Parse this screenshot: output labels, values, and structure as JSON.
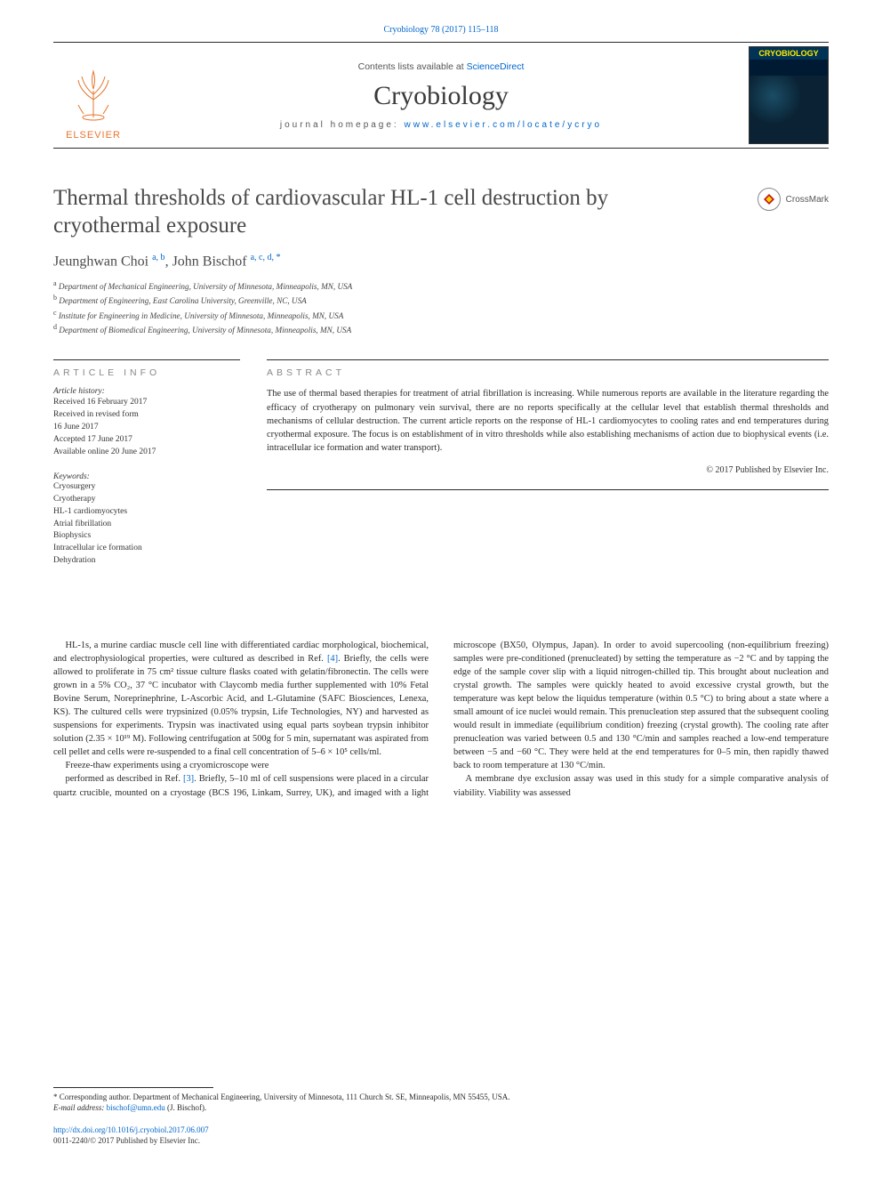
{
  "top_citation_prefix": "Cryobiology 78 (2017) 115",
  "top_citation_dash": "–",
  "top_citation_suffix": "118",
  "masthead": {
    "contents_prefix": "Contents lists available at ",
    "contents_link": "ScienceDirect",
    "journal": "Cryobiology",
    "homepage_prefix": "journal homepage: ",
    "homepage_url": "www.elsevier.com/locate/ycryo",
    "logo_text": "ELSEVIER",
    "cover_title": "CRYOBIOLOGY",
    "logo_color": "#e8762f",
    "cover_bg": "#001a33",
    "cover_title_color": "#ffeb00"
  },
  "crossmark_label": "CrossMark",
  "title": "Thermal thresholds of cardiovascular HL-1 cell destruction by cryothermal exposure",
  "authors": {
    "a1_name": "Jeunghwan Choi ",
    "a1_sup": "a, b",
    "sep": ", ",
    "a2_name": "John Bischof ",
    "a2_sup": "a, c, d, ",
    "a2_star": "*"
  },
  "affiliations": {
    "a": "Department of Mechanical Engineering, University of Minnesota, Minneapolis, MN, USA",
    "b": "Department of Engineering, East Carolina University, Greenville, NC, USA",
    "c": "Institute for Engineering in Medicine, University of Minnesota, Minneapolis, MN, USA",
    "d": "Department of Biomedical Engineering, University of Minnesota, Minneapolis, MN, USA"
  },
  "article_info": {
    "heading": "article info",
    "history_label": "Article history:",
    "history": "Received 16 February 2017\nReceived in revised form\n16 June 2017\nAccepted 17 June 2017\nAvailable online 20 June 2017",
    "keywords_label": "Keywords:",
    "keywords": "Cryosurgery\nCryotherapy\nHL-1 cardiomyocytes\nAtrial fibrillation\nBiophysics\nIntracellular ice formation\nDehydration"
  },
  "abstract": {
    "heading": "abstract",
    "body": "The use of thermal based therapies for treatment of atrial fibrillation is increasing. While numerous reports are available in the literature regarding the efficacy of cryotherapy on pulmonary vein survival, there are no reports specifically at the cellular level that establish thermal thresholds and mechanisms of cellular destruction. The current article reports on the response of HL-1 cardiomyocytes to cooling rates and end temperatures during cryothermal exposure. The focus is on establishment of in vitro thresholds while also establishing mechanisms of action due to biophysical events (i.e. intracellular ice formation and water transport).",
    "copyright": "© 2017 Published by Elsevier Inc."
  },
  "body": {
    "p1": "HL-1s, a murine cardiac muscle cell line with differentiated cardiac morphological, biochemical, and electrophysiological properties, were cultured as described in Ref. [4]. Briefly, the cells were allowed to proliferate in 75 cm² tissue culture flasks coated with gelatin/fibronectin. The cells were grown in a 5% CO₂, 37 °C incubator with Claycomb media further supplemented with 10% Fetal Bovine Serum, Noreprinephrine, L-Ascorbic Acid, and L-Glutamine (SAFC Biosciences, Lenexa, KS). The cultured cells were trypsinized (0.05% trypsin, Life Technologies, NY) and harvested as suspensions for experiments. Trypsin was inactivated using equal parts soybean trypsin inhibitor solution (2.35 × 10¹⁹ M). Following centrifugation at 500g for 5 min, supernatant was aspirated from cell pellet and cells were re-suspended to a final cell concentration of 5–6 × 10⁵ cells/ml.",
    "p2": "Freeze-thaw experiments using a cryomicroscope were",
    "p3": "performed as described in Ref. [3]. Briefly, 5–10 ml of cell suspensions were placed in a circular quartz crucible, mounted on a cryostage (BCS 196, Linkam, Surrey, UK), and imaged with a light microscope (BX50, Olympus, Japan). In order to avoid supercooling (non-equilibrium freezing) samples were pre-conditioned (prenucleated) by setting the temperature as −2 °C and by tapping the edge of the sample cover slip with a liquid nitrogen-chilled tip. This brought about nucleation and crystal growth. The samples were quickly heated to avoid excessive crystal growth, but the temperature was kept below the liquidus temperature (within 0.5 °C) to bring about a state where a small amount of ice nuclei would remain. This prenucleation step assured that the subsequent cooling would result in immediate (equilibrium condition) freezing (crystal growth). The cooling rate after prenucleation was varied between 0.5 and 130 °C/min and samples reached a low-end temperature between −5 and −60 °C. They were held at the end temperatures for 0–5 min, then rapidly thawed back to room temperature at 130 °C/min.",
    "p4": "A membrane dye exclusion assay was used in this study for a simple comparative analysis of viability. Viability was assessed"
  },
  "footnote": {
    "corr": "* Corresponding author. Department of Mechanical Engineering, University of Minnesota, 111 Church St. SE, Minneapolis, MN 55455, USA.",
    "email_label": "E-mail address: ",
    "email": "bischof@umn.edu",
    "email_suffix": " (J. Bischof).",
    "doi": "http://dx.doi.org/10.1016/j.cryobiol.2017.06.007",
    "issn_copy": "0011-2240/© 2017 Published by Elsevier Inc."
  },
  "colors": {
    "link": "#0066cc",
    "text": "#2a2a2a",
    "muted": "#555555",
    "rule": "#2a2a2a"
  }
}
